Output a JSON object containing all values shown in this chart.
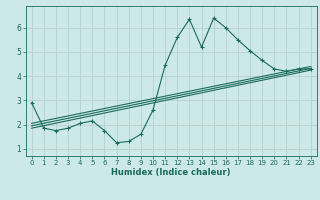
{
  "title": "",
  "xlabel": "Humidex (Indice chaleur)",
  "background_color": "#cce8e8",
  "grid_color": "#b8d0d0",
  "line_color": "#1a6b5a",
  "xlim": [
    -0.5,
    23.5
  ],
  "ylim": [
    0.7,
    6.9
  ],
  "xticks": [
    0,
    1,
    2,
    3,
    4,
    5,
    6,
    7,
    8,
    9,
    10,
    11,
    12,
    13,
    14,
    15,
    16,
    17,
    18,
    19,
    20,
    21,
    22,
    23
  ],
  "yticks": [
    1,
    2,
    3,
    4,
    5,
    6
  ],
  "series1_x": [
    0,
    1,
    2,
    3,
    4,
    5,
    6,
    7,
    8,
    9,
    10,
    11,
    12,
    13,
    14,
    15,
    16,
    17,
    18,
    19,
    20,
    21,
    22,
    23
  ],
  "series1_y": [
    2.9,
    1.85,
    1.75,
    1.85,
    2.05,
    2.15,
    1.75,
    1.25,
    1.3,
    1.6,
    2.6,
    4.45,
    5.6,
    6.35,
    5.2,
    6.4,
    6.0,
    5.5,
    5.05,
    4.65,
    4.3,
    4.2,
    4.3,
    4.3
  ],
  "series2_x": [
    0,
    23
  ],
  "series2_y": [
    2.05,
    4.4
  ],
  "series3_x": [
    0,
    23
  ],
  "series3_y": [
    1.95,
    4.32
  ],
  "series4_x": [
    0,
    23
  ],
  "series4_y": [
    1.85,
    4.25
  ]
}
